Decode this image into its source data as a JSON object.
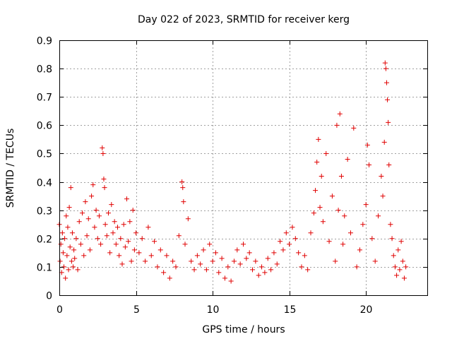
{
  "chart_data": {
    "type": "scatter",
    "title": "Day 022 of 2023, SRMTID for receiver kerg",
    "xlabel": "GPS time / hours",
    "ylabel": "SRMTID / TECUs",
    "xlim": [
      0,
      24
    ],
    "ylim": [
      0,
      0.9
    ],
    "xticks": [
      0,
      5,
      10,
      15,
      20
    ],
    "yticks": [
      0,
      0.1,
      0.2,
      0.3,
      0.4,
      0.5,
      0.6,
      0.7,
      0.8,
      0.9
    ],
    "xtick_labels": [
      "0",
      "5",
      "10",
      "15",
      "20"
    ],
    "ytick_labels": [
      "0",
      "0.1",
      "0.2",
      "0.3",
      "0.4",
      "0.5",
      "0.6",
      "0.7",
      "0.8",
      "0.9"
    ],
    "grid": true,
    "marker": "+",
    "color": "#e00000",
    "series": [
      {
        "name": "SRMTID",
        "points": [
          [
            0.0,
            0.25
          ],
          [
            0.05,
            0.12
          ],
          [
            0.1,
            0.18
          ],
          [
            0.15,
            0.08
          ],
          [
            0.2,
            0.22
          ],
          [
            0.25,
            0.15
          ],
          [
            0.3,
            0.1
          ],
          [
            0.35,
            0.2
          ],
          [
            0.4,
            0.06
          ],
          [
            0.45,
            0.28
          ],
          [
            0.5,
            0.14
          ],
          [
            0.55,
            0.24
          ],
          [
            0.6,
            0.09
          ],
          [
            0.65,
            0.31
          ],
          [
            0.7,
            0.17
          ],
          [
            0.75,
            0.38
          ],
          [
            0.8,
            0.12
          ],
          [
            0.85,
            0.22
          ],
          [
            0.9,
            0.1
          ],
          [
            0.95,
            0.16
          ],
          [
            1.0,
            0.13
          ],
          [
            1.1,
            0.2
          ],
          [
            1.2,
            0.09
          ],
          [
            1.3,
            0.26
          ],
          [
            1.4,
            0.18
          ],
          [
            1.5,
            0.29
          ],
          [
            1.6,
            0.14
          ],
          [
            1.7,
            0.33
          ],
          [
            1.8,
            0.21
          ],
          [
            1.9,
            0.27
          ],
          [
            2.0,
            0.16
          ],
          [
            2.1,
            0.35
          ],
          [
            2.2,
            0.39
          ],
          [
            2.3,
            0.24
          ],
          [
            2.4,
            0.3
          ],
          [
            2.5,
            0.2
          ],
          [
            2.6,
            0.28
          ],
          [
            2.7,
            0.18
          ],
          [
            2.8,
            0.52
          ],
          [
            2.85,
            0.5
          ],
          [
            2.9,
            0.41
          ],
          [
            2.95,
            0.38
          ],
          [
            3.0,
            0.25
          ],
          [
            3.1,
            0.21
          ],
          [
            3.2,
            0.29
          ],
          [
            3.3,
            0.15
          ],
          [
            3.4,
            0.32
          ],
          [
            3.5,
            0.22
          ],
          [
            3.6,
            0.26
          ],
          [
            3.7,
            0.18
          ],
          [
            3.8,
            0.24
          ],
          [
            3.9,
            0.14
          ],
          [
            4.0,
            0.2
          ],
          [
            4.1,
            0.11
          ],
          [
            4.2,
            0.25
          ],
          [
            4.3,
            0.17
          ],
          [
            4.4,
            0.34
          ],
          [
            4.5,
            0.19
          ],
          [
            4.6,
            0.26
          ],
          [
            4.7,
            0.12
          ],
          [
            4.8,
            0.3
          ],
          [
            4.9,
            0.16
          ],
          [
            5.0,
            0.22
          ],
          [
            5.2,
            0.15
          ],
          [
            5.4,
            0.2
          ],
          [
            5.6,
            0.12
          ],
          [
            5.8,
            0.24
          ],
          [
            6.0,
            0.14
          ],
          [
            6.2,
            0.19
          ],
          [
            6.4,
            0.1
          ],
          [
            6.6,
            0.16
          ],
          [
            6.8,
            0.08
          ],
          [
            7.0,
            0.14
          ],
          [
            7.2,
            0.06
          ],
          [
            7.4,
            0.12
          ],
          [
            7.6,
            0.1
          ],
          [
            7.8,
            0.21
          ],
          [
            8.0,
            0.4
          ],
          [
            8.05,
            0.38
          ],
          [
            8.1,
            0.33
          ],
          [
            8.2,
            0.18
          ],
          [
            8.4,
            0.27
          ],
          [
            8.6,
            0.12
          ],
          [
            8.8,
            0.09
          ],
          [
            9.0,
            0.14
          ],
          [
            9.2,
            0.11
          ],
          [
            9.4,
            0.16
          ],
          [
            9.6,
            0.09
          ],
          [
            9.8,
            0.18
          ],
          [
            10.0,
            0.12
          ],
          [
            10.2,
            0.15
          ],
          [
            10.4,
            0.08
          ],
          [
            10.6,
            0.13
          ],
          [
            10.8,
            0.06
          ],
          [
            11.0,
            0.1
          ],
          [
            11.2,
            0.05
          ],
          [
            11.4,
            0.12
          ],
          [
            11.6,
            0.16
          ],
          [
            11.8,
            0.11
          ],
          [
            12.0,
            0.18
          ],
          [
            12.2,
            0.13
          ],
          [
            12.4,
            0.15
          ],
          [
            12.6,
            0.09
          ],
          [
            12.8,
            0.12
          ],
          [
            13.0,
            0.07
          ],
          [
            13.2,
            0.1
          ],
          [
            13.4,
            0.08
          ],
          [
            13.6,
            0.13
          ],
          [
            13.8,
            0.09
          ],
          [
            14.0,
            0.15
          ],
          [
            14.2,
            0.11
          ],
          [
            14.4,
            0.19
          ],
          [
            14.6,
            0.16
          ],
          [
            14.8,
            0.22
          ],
          [
            15.0,
            0.18
          ],
          [
            15.2,
            0.24
          ],
          [
            15.4,
            0.2
          ],
          [
            15.6,
            0.15
          ],
          [
            15.8,
            0.1
          ],
          [
            16.0,
            0.14
          ],
          [
            16.2,
            0.09
          ],
          [
            16.4,
            0.22
          ],
          [
            16.6,
            0.29
          ],
          [
            16.7,
            0.37
          ],
          [
            16.8,
            0.47
          ],
          [
            16.9,
            0.55
          ],
          [
            17.0,
            0.31
          ],
          [
            17.1,
            0.42
          ],
          [
            17.2,
            0.26
          ],
          [
            17.4,
            0.5
          ],
          [
            17.6,
            0.19
          ],
          [
            17.8,
            0.35
          ],
          [
            18.0,
            0.12
          ],
          [
            18.1,
            0.6
          ],
          [
            18.2,
            0.3
          ],
          [
            18.3,
            0.64
          ],
          [
            18.4,
            0.42
          ],
          [
            18.5,
            0.18
          ],
          [
            18.6,
            0.28
          ],
          [
            18.8,
            0.48
          ],
          [
            19.0,
            0.22
          ],
          [
            19.2,
            0.59
          ],
          [
            19.4,
            0.1
          ],
          [
            19.6,
            0.16
          ],
          [
            19.8,
            0.25
          ],
          [
            20.0,
            0.32
          ],
          [
            20.1,
            0.53
          ],
          [
            20.2,
            0.46
          ],
          [
            20.4,
            0.2
          ],
          [
            20.6,
            0.12
          ],
          [
            20.8,
            0.28
          ],
          [
            21.0,
            0.42
          ],
          [
            21.1,
            0.35
          ],
          [
            21.2,
            0.54
          ],
          [
            21.25,
            0.82
          ],
          [
            21.3,
            0.8
          ],
          [
            21.35,
            0.75
          ],
          [
            21.4,
            0.69
          ],
          [
            21.45,
            0.61
          ],
          [
            21.5,
            0.46
          ],
          [
            21.6,
            0.25
          ],
          [
            21.7,
            0.2
          ],
          [
            21.8,
            0.14
          ],
          [
            21.9,
            0.1
          ],
          [
            22.0,
            0.07
          ],
          [
            22.1,
            0.16
          ],
          [
            22.2,
            0.09
          ],
          [
            22.3,
            0.19
          ],
          [
            22.4,
            0.12
          ],
          [
            22.5,
            0.06
          ],
          [
            22.6,
            0.1
          ]
        ]
      }
    ]
  }
}
